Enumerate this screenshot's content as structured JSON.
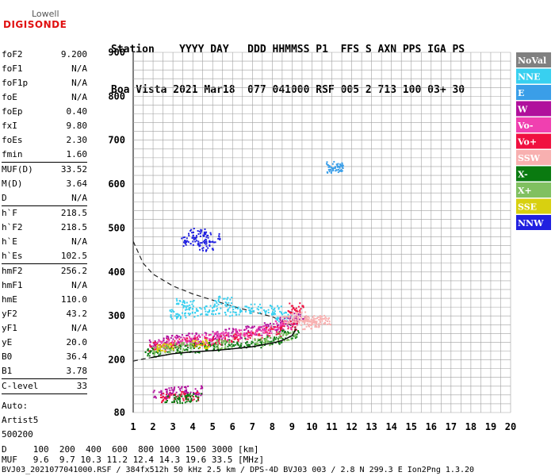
{
  "logo": {
    "top": "Lowell",
    "bottom": "DIGISONDE"
  },
  "header": {
    "labels": "Station    YYYY DAY   DDD HHMMSS P1  FFS S AXN PPS IGA PS",
    "values": "Boa Vista 2021 Mar18  077 041000 RSF 005 2 713 100 03+ 30"
  },
  "params": {
    "group1": [
      {
        "name": "foF2",
        "value": "9.200"
      },
      {
        "name": "foF1",
        "value": "N/A"
      },
      {
        "name": "foF1p",
        "value": "N/A"
      },
      {
        "name": "foE",
        "value": "N/A"
      },
      {
        "name": "foEp",
        "value": "0.40"
      },
      {
        "name": "fxI",
        "value": "9.80"
      },
      {
        "name": "foEs",
        "value": "2.30"
      },
      {
        "name": "fmin",
        "value": "1.60"
      }
    ],
    "group2": [
      {
        "name": "MUF(D)",
        "value": "33.52"
      },
      {
        "name": "M(D)",
        "value": "3.64"
      },
      {
        "name": "D",
        "value": "N/A"
      }
    ],
    "group3": [
      {
        "name": "h`F",
        "value": "218.5"
      },
      {
        "name": "h`F2",
        "value": "218.5"
      },
      {
        "name": "h`E",
        "value": "N/A"
      },
      {
        "name": "h`Es",
        "value": "102.5"
      }
    ],
    "group4": [
      {
        "name": "hmF2",
        "value": "256.2"
      },
      {
        "name": "hmF1",
        "value": "N/A"
      },
      {
        "name": "hmE",
        "value": "110.0"
      },
      {
        "name": "yF2",
        "value": "43.2"
      },
      {
        "name": "yF1",
        "value": "N/A"
      },
      {
        "name": "yE",
        "value": "20.0"
      },
      {
        "name": "B0",
        "value": "36.4"
      },
      {
        "name": "B1",
        "value": "3.78"
      }
    ],
    "group5": [
      {
        "name": "C-level",
        "value": "33"
      }
    ],
    "auto": [
      "Auto:",
      "Artist5",
      "500200"
    ]
  },
  "footer": {
    "line1": "D     100  200  400  600  800 1000 1500 3000 [km]",
    "line2": "MUF   9.6  9.7 10.3 11.2 12.4 14.3 19.6 33.5 [MHz]",
    "line3": "BVJ03_2021077041000.RSF / 384fx512h 50 kHz 2.5 km / DPS-4D BVJ03 003 / 2.8 N 299.3 E Ion2Png 1.3.20"
  },
  "colors": {
    "grid": "#a0a0a0",
    "NNE": "#38d0f0",
    "E": "#3a9ee8",
    "W": "#b0109c",
    "Vo-": "#f040b0",
    "Vo+": "#f01040",
    "SSW": "#f8b0b0",
    "X-": "#0a7a10",
    "X+": "#80c060",
    "SSE": "#d8d010",
    "NNW": "#2020e0",
    "NoVal": "#808080"
  },
  "chart_data": {
    "type": "scatter",
    "title": "",
    "xlabel": "",
    "ylabel": "",
    "x_ticks": [
      1,
      2,
      3,
      4,
      5,
      6,
      7,
      8,
      9,
      10,
      11,
      12,
      13,
      14,
      15,
      16,
      17,
      18,
      19,
      20
    ],
    "y_ticks": [
      80,
      200,
      300,
      400,
      500,
      600,
      700,
      800,
      900
    ],
    "xlim": [
      1,
      20
    ],
    "ylim": [
      80,
      900
    ],
    "grid": true,
    "legend_position": "right",
    "legend": [
      "NoVal",
      "NNE",
      "E",
      "W",
      "Vo-",
      "Vo+",
      "SSW",
      "X-",
      "X+",
      "SSE",
      "NNW"
    ],
    "series": [
      {
        "name": "NNE",
        "color": "#38d0f0",
        "points": [
          [
            3.2,
            305
          ],
          [
            4,
            310
          ],
          [
            5,
            315
          ],
          [
            6,
            312
          ],
          [
            7,
            318
          ],
          [
            8,
            315
          ],
          [
            8.6,
            300
          ],
          [
            3.6,
            330
          ],
          [
            5.5,
            335
          ]
        ]
      },
      {
        "name": "W",
        "color": "#b0109c",
        "points": [
          [
            2.2,
            240
          ],
          [
            3,
            248
          ],
          [
            4,
            252
          ],
          [
            5,
            256
          ],
          [
            6,
            262
          ],
          [
            7,
            268
          ],
          [
            8,
            276
          ],
          [
            8.8,
            290
          ],
          [
            9.2,
            300
          ],
          [
            2.4,
            125
          ],
          [
            3.2,
            130
          ],
          [
            4,
            132
          ]
        ]
      },
      {
        "name": "Vo+",
        "color": "#f01040",
        "points": [
          [
            2.2,
            232
          ],
          [
            3,
            238
          ],
          [
            4,
            242
          ],
          [
            5,
            246
          ],
          [
            6,
            252
          ],
          [
            7,
            258
          ],
          [
            8,
            266
          ],
          [
            8.8,
            280
          ],
          [
            9.2,
            320
          ],
          [
            2.8,
            116
          ],
          [
            3.8,
            120
          ]
        ]
      },
      {
        "name": "Vo-",
        "color": "#f040b0",
        "points": [
          [
            2.5,
            236
          ],
          [
            3.5,
            244
          ],
          [
            4.5,
            248
          ],
          [
            5.5,
            254
          ],
          [
            6.5,
            260
          ],
          [
            7.5,
            268
          ],
          [
            8.5,
            280
          ]
        ]
      },
      {
        "name": "SSW",
        "color": "#f8b0b0",
        "points": [
          [
            9.3,
            300
          ],
          [
            9.6,
            290
          ],
          [
            9.9,
            282
          ],
          [
            10.2,
            292
          ],
          [
            10.5,
            288
          ],
          [
            8.9,
            295
          ]
        ]
      },
      {
        "name": "X-",
        "color": "#0a7a10",
        "points": [
          [
            2,
            218
          ],
          [
            3,
            224
          ],
          [
            4,
            228
          ],
          [
            5,
            232
          ],
          [
            6,
            236
          ],
          [
            7,
            240
          ],
          [
            8,
            246
          ],
          [
            8.9,
            260
          ],
          [
            3,
            112
          ],
          [
            4,
            114
          ]
        ]
      },
      {
        "name": "X+",
        "color": "#80c060",
        "points": [
          [
            2.4,
            224
          ],
          [
            3.5,
            230
          ],
          [
            5.5,
            236
          ],
          [
            7.5,
            244
          ],
          [
            8.7,
            256
          ]
        ]
      },
      {
        "name": "E",
        "color": "#3a9ee8",
        "points": [
          [
            11.1,
            638
          ],
          [
            11.1,
            642
          ]
        ]
      },
      {
        "name": "NNW",
        "color": "#2020e0",
        "points": [
          [
            3.8,
            470
          ],
          [
            4.2,
            490
          ],
          [
            4.6,
            460
          ],
          [
            5,
            480
          ]
        ]
      },
      {
        "name": "SSE",
        "color": "#d8d010",
        "points": [
          [
            2.6,
            228
          ],
          [
            4.4,
            238
          ]
        ]
      }
    ],
    "trace_solid": [
      [
        1.9,
        205
      ],
      [
        3,
        214
      ],
      [
        4,
        218
      ],
      [
        5,
        221
      ],
      [
        6,
        225
      ],
      [
        7,
        230
      ],
      [
        8,
        238
      ],
      [
        8.5,
        244
      ],
      [
        9,
        255
      ],
      [
        9.2,
        270
      ]
    ],
    "trace_dashed": [
      [
        1,
        470
      ],
      [
        1.5,
        420
      ],
      [
        2,
        395
      ],
      [
        3,
        368
      ],
      [
        4,
        350
      ],
      [
        5,
        336
      ],
      [
        6,
        322
      ],
      [
        7,
        310
      ],
      [
        8,
        298
      ],
      [
        8.8,
        282
      ],
      [
        9.2,
        272
      ]
    ],
    "trace_bottom": [
      [
        1,
        197
      ],
      [
        1.5,
        202
      ],
      [
        1.9,
        205
      ]
    ]
  }
}
